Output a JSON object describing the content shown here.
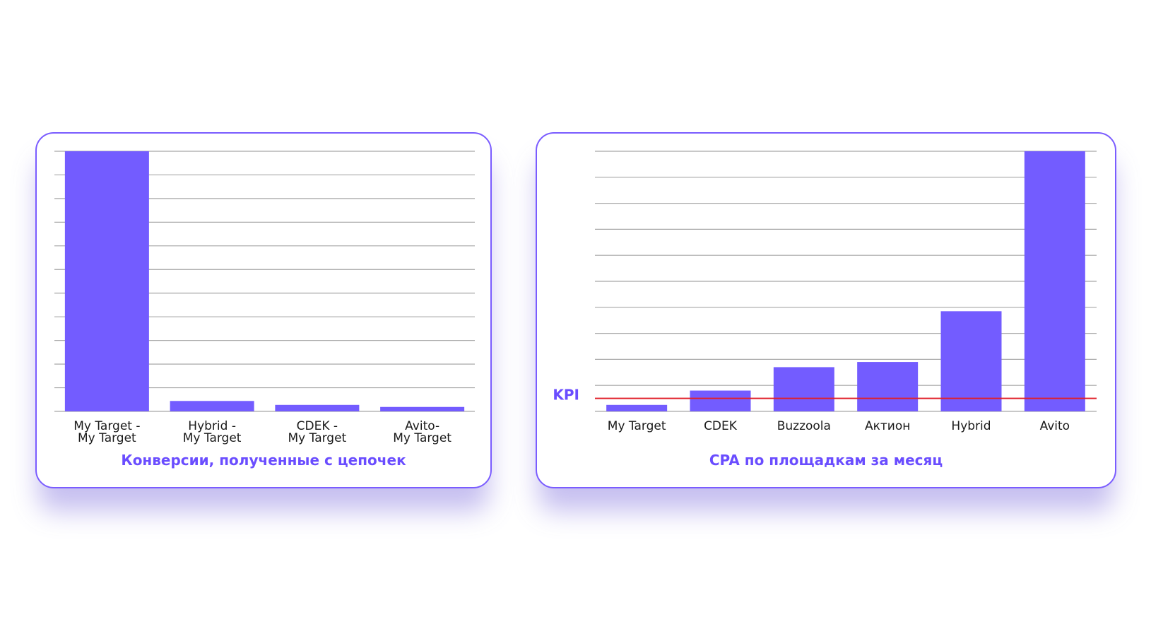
{
  "colors": {
    "accent": "#735cff",
    "border": "#7a5cff",
    "kpi": "#e0202a",
    "grid": "#a7a7a7"
  },
  "chart_data": [
    {
      "type": "bar",
      "title": "Конверсии, полученные с цепочек",
      "categories": [
        [
          "My Target -",
          "My Target"
        ],
        [
          "Hybrid -",
          "My Target"
        ],
        [
          "CDEK -",
          "My Target"
        ],
        [
          "Avito-",
          "My Target"
        ]
      ],
      "values": [
        100,
        4,
        2.5,
        1.7
      ],
      "ylim": [
        0,
        100
      ],
      "grid": true,
      "grid_lines": 12
    },
    {
      "type": "bar",
      "title": "CPA по площадкам за месяц",
      "categories": [
        [
          "My Target"
        ],
        [
          "CDEK"
        ],
        [
          "Buzzoola"
        ],
        [
          "Актион"
        ],
        [
          "Hybrid"
        ],
        [
          "Avito"
        ]
      ],
      "values": [
        2.5,
        8,
        17,
        19,
        38.5,
        100
      ],
      "ylim": [
        0,
        100
      ],
      "grid": true,
      "grid_lines": 11,
      "kpi": {
        "label": "KPI",
        "value": 5
      }
    }
  ]
}
